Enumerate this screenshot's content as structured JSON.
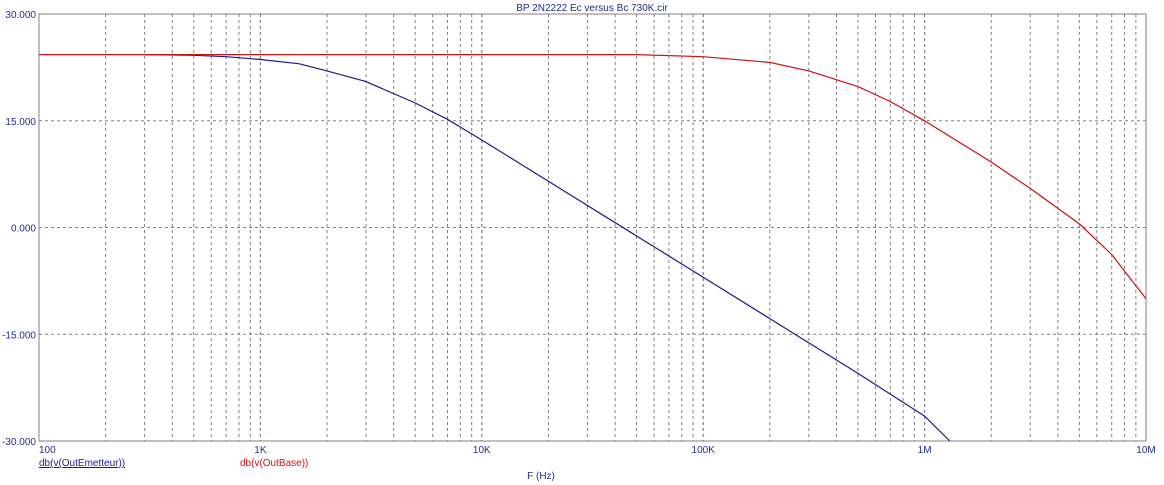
{
  "chart_data": {
    "type": "line",
    "title": "BP 2N2222 Ec versus Bc 730K.cir",
    "xlabel": "F (Hz)",
    "ylabel": "",
    "x_scale": "log",
    "xlim": [
      100,
      10000000
    ],
    "ylim": [
      -30,
      30
    ],
    "x_tick_labels": [
      "100",
      "1K",
      "10K",
      "100K",
      "1M",
      "10M"
    ],
    "y_tick_labels": [
      "30.000",
      "15.000",
      "0.000",
      "-15.000",
      "-30.000"
    ],
    "grid": true,
    "series": [
      {
        "name": "db(v(OutEmetteur))",
        "color": "#1a1a8c",
        "points": [
          [
            300,
            24.3
          ],
          [
            500,
            24.2
          ],
          [
            700,
            24.0
          ],
          [
            1000,
            23.6
          ],
          [
            1500,
            23.0
          ],
          [
            2000,
            22.0
          ],
          [
            3000,
            20.5
          ],
          [
            5000,
            17.5
          ],
          [
            7000,
            15.2
          ],
          [
            10000,
            12.3
          ],
          [
            20000,
            6.5
          ],
          [
            50000,
            -1.2
          ],
          [
            100000,
            -7.0
          ],
          [
            200000,
            -12.8
          ],
          [
            500000,
            -20.5
          ],
          [
            1000000,
            -26.5
          ],
          [
            1300000,
            -30.0
          ]
        ]
      },
      {
        "name": "db(v(OutBase))",
        "color": "#cc1111",
        "points": [
          [
            100,
            24.3
          ],
          [
            1000,
            24.3
          ],
          [
            10000,
            24.3
          ],
          [
            50000,
            24.3
          ],
          [
            100000,
            24.0
          ],
          [
            200000,
            23.2
          ],
          [
            300000,
            22.0
          ],
          [
            500000,
            19.8
          ],
          [
            700000,
            17.7
          ],
          [
            1000000,
            15.0
          ],
          [
            2000000,
            9.2
          ],
          [
            3000000,
            5.5
          ],
          [
            5000000,
            0.5
          ],
          [
            7000000,
            -3.8
          ],
          [
            10000000,
            -10.0
          ]
        ]
      }
    ]
  }
}
